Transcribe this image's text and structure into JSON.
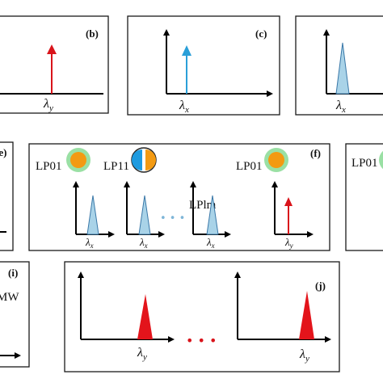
{
  "panels": {
    "b": {
      "label": "(b)",
      "x_label": "λ",
      "x_sub": "y"
    },
    "c": {
      "label": "(c)",
      "x_label": "λ",
      "x_sub": "x"
    },
    "d": {
      "x_label": "λ",
      "x_sub": "x"
    },
    "e": {
      "label": "(e)"
    },
    "f": {
      "label": "(f)",
      "modes": [
        {
          "name": "LP01",
          "x_label": "λ",
          "x_sub": "x"
        },
        {
          "name": "LP11",
          "x_label": "λ",
          "x_sub": "x"
        },
        {
          "name": "LPlm",
          "x_label": "λ",
          "x_sub": "x"
        },
        {
          "name": "LP01",
          "x_label": "λ",
          "x_sub": "y"
        }
      ],
      "ellipsis": "• • •"
    },
    "g": {
      "mode": "LP01"
    },
    "i": {
      "label": "(i)",
      "text": "MW"
    },
    "j": {
      "label": "(j)",
      "x_labels": [
        {
          "x_label": "λ",
          "x_sub": "y"
        },
        {
          "x_label": "λ",
          "x_sub": "y"
        }
      ],
      "ellipsis": "• • •"
    }
  },
  "colors": {
    "red": "#d9141b",
    "blue_arrow": "#2a9fd8",
    "blue_fill": "#a9d3e8",
    "blue_stroke": "#3a78a8",
    "orange": "#f39a12",
    "ring": "#9ae0a4",
    "lp11_blue": "#1e9be0"
  }
}
